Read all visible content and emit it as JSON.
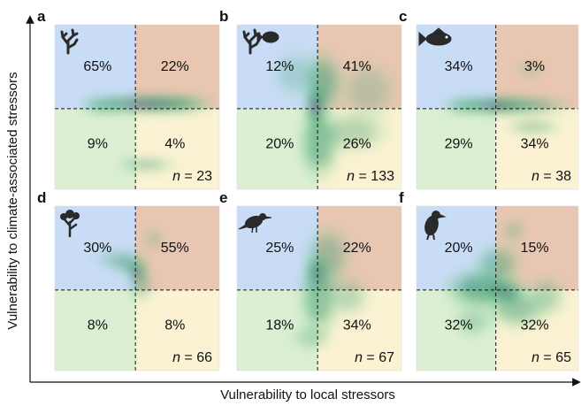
{
  "figure": {
    "xlabel": "Vulnerability to local stressors",
    "ylabel": "Vulnerability to climate-associated stressors"
  },
  "colors": {
    "top_left": "#c9dcf6",
    "top_right": "#e9c6b1",
    "bottom_left": "#dcefd2",
    "bottom_right": "#faf2d2",
    "density_low": "#7fcf9a",
    "density_mid": "#2e8a6a",
    "density_high": "#6b1f8a"
  },
  "chart_data": [
    {
      "type": "heatmap",
      "panel": "a",
      "taxon_icon": "coral-icon",
      "quadrant_percent": {
        "top_left": "65%",
        "top_right": "22%",
        "bottom_left": "9%",
        "bottom_right": "4%"
      },
      "n_label": "n",
      "n_value": "= 23",
      "density_blobs": [
        {
          "x": 0.55,
          "y": 0.48,
          "sx": 0.3,
          "sy": 0.04,
          "w": 1.0
        },
        {
          "x": 0.7,
          "y": 0.48,
          "sx": 0.22,
          "sy": 0.04,
          "w": 0.6
        },
        {
          "x": 0.55,
          "y": 0.85,
          "sx": 0.15,
          "sy": 0.03,
          "w": 0.5
        },
        {
          "x": 0.3,
          "y": 0.49,
          "sx": 0.12,
          "sy": 0.04,
          "w": 0.5
        }
      ]
    },
    {
      "type": "heatmap",
      "panel": "b",
      "taxon_icon": "coral-fish-icon",
      "quadrant_percent": {
        "top_left": "12%",
        "top_right": "41%",
        "bottom_left": "20%",
        "bottom_right": "26%"
      },
      "n_label": "n",
      "n_value": "= 133",
      "density_blobs": [
        {
          "x": 0.48,
          "y": 0.5,
          "sx": 0.05,
          "sy": 0.12,
          "w": 1.0
        },
        {
          "x": 0.5,
          "y": 0.72,
          "sx": 0.1,
          "sy": 0.18,
          "w": 0.6
        },
        {
          "x": 0.52,
          "y": 0.35,
          "sx": 0.1,
          "sy": 0.16,
          "w": 0.55
        },
        {
          "x": 0.7,
          "y": 0.65,
          "sx": 0.18,
          "sy": 0.1,
          "w": 0.35
        },
        {
          "x": 0.8,
          "y": 0.4,
          "sx": 0.15,
          "sy": 0.15,
          "w": 0.25
        },
        {
          "x": 0.35,
          "y": 0.3,
          "sx": 0.12,
          "sy": 0.12,
          "w": 0.25
        }
      ]
    },
    {
      "type": "heatmap",
      "panel": "c",
      "taxon_icon": "fish-icon",
      "quadrant_percent": {
        "top_left": "34%",
        "top_right": "3%",
        "bottom_left": "29%",
        "bottom_right": "34%"
      },
      "n_label": "n",
      "n_value": "= 38",
      "density_blobs": [
        {
          "x": 0.48,
          "y": 0.49,
          "sx": 0.2,
          "sy": 0.04,
          "w": 1.0
        },
        {
          "x": 0.65,
          "y": 0.49,
          "sx": 0.25,
          "sy": 0.04,
          "w": 0.6
        },
        {
          "x": 0.72,
          "y": 0.62,
          "sx": 0.14,
          "sy": 0.03,
          "w": 0.5
        },
        {
          "x": 0.7,
          "y": 0.27,
          "sx": 0.08,
          "sy": 0.03,
          "w": 0.3
        },
        {
          "x": 0.3,
          "y": 0.49,
          "sx": 0.12,
          "sy": 0.04,
          "w": 0.5
        }
      ]
    },
    {
      "type": "heatmap",
      "panel": "d",
      "taxon_icon": "tree-icon",
      "quadrant_percent": {
        "top_left": "30%",
        "top_right": "55%",
        "bottom_left": "8%",
        "bottom_right": "8%"
      },
      "n_label": "n",
      "n_value": "= 66",
      "density_blobs": [
        {
          "x": 0.5,
          "y": 0.4,
          "sx": 0.05,
          "sy": 0.04,
          "w": 1.0
        },
        {
          "x": 0.45,
          "y": 0.36,
          "sx": 0.1,
          "sy": 0.03,
          "w": 0.6
        },
        {
          "x": 0.4,
          "y": 0.32,
          "sx": 0.14,
          "sy": 0.04,
          "w": 0.4
        },
        {
          "x": 0.52,
          "y": 0.48,
          "sx": 0.06,
          "sy": 0.08,
          "w": 0.4
        },
        {
          "x": 0.6,
          "y": 0.2,
          "sx": 0.05,
          "sy": 0.05,
          "w": 0.3
        }
      ]
    },
    {
      "type": "heatmap",
      "panel": "e",
      "taxon_icon": "bird-icon",
      "quadrant_percent": {
        "top_left": "25%",
        "top_right": "22%",
        "bottom_left": "18%",
        "bottom_right": "34%"
      },
      "n_label": "n",
      "n_value": "= 67",
      "density_blobs": [
        {
          "x": 0.48,
          "y": 0.4,
          "sx": 0.05,
          "sy": 0.08,
          "w": 1.0
        },
        {
          "x": 0.5,
          "y": 0.55,
          "sx": 0.1,
          "sy": 0.2,
          "w": 0.55
        },
        {
          "x": 0.55,
          "y": 0.3,
          "sx": 0.12,
          "sy": 0.15,
          "w": 0.4
        },
        {
          "x": 0.68,
          "y": 0.55,
          "sx": 0.1,
          "sy": 0.1,
          "w": 0.3
        },
        {
          "x": 0.45,
          "y": 0.8,
          "sx": 0.1,
          "sy": 0.06,
          "w": 0.3
        }
      ]
    },
    {
      "type": "heatmap",
      "panel": "f",
      "taxon_icon": "mammal-icon",
      "quadrant_percent": {
        "top_left": "20%",
        "top_right": "15%",
        "bottom_left": "32%",
        "bottom_right": "32%"
      },
      "n_label": "n",
      "n_value": "= 65",
      "density_blobs": [
        {
          "x": 0.55,
          "y": 0.52,
          "sx": 0.1,
          "sy": 0.06,
          "w": 1.0
        },
        {
          "x": 0.4,
          "y": 0.5,
          "sx": 0.18,
          "sy": 0.1,
          "w": 0.7
        },
        {
          "x": 0.62,
          "y": 0.62,
          "sx": 0.15,
          "sy": 0.1,
          "w": 0.5
        },
        {
          "x": 0.5,
          "y": 0.35,
          "sx": 0.12,
          "sy": 0.1,
          "w": 0.45
        },
        {
          "x": 0.8,
          "y": 0.55,
          "sx": 0.1,
          "sy": 0.1,
          "w": 0.35
        },
        {
          "x": 0.6,
          "y": 0.15,
          "sx": 0.06,
          "sy": 0.06,
          "w": 0.3
        },
        {
          "x": 0.35,
          "y": 0.7,
          "sx": 0.1,
          "sy": 0.08,
          "w": 0.3
        }
      ]
    }
  ]
}
